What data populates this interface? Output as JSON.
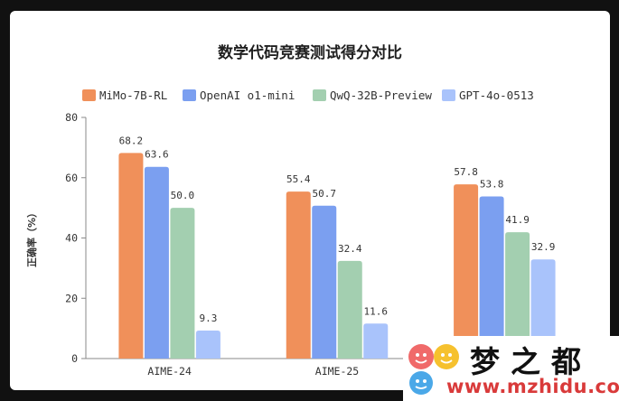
{
  "chart_data": {
    "type": "bar",
    "title": "数学代码竞赛测试得分对比",
    "ylabel": "正确率（%）",
    "xlabel": "",
    "ylim": [
      0,
      80
    ],
    "yticks": [
      0,
      20,
      40,
      60,
      80
    ],
    "categories": [
      "AIME-24",
      "AIME-25",
      ""
    ],
    "series": [
      {
        "name": "MiMo-7B-RL",
        "color": "#f0905a",
        "values": [
          68.2,
          55.4,
          57.8
        ],
        "labels": [
          "68.2",
          "55.4",
          "57.8"
        ]
      },
      {
        "name": "OpenAI o1-mini",
        "color": "#7b9ff0",
        "values": [
          63.6,
          50.7,
          53.8
        ],
        "labels": [
          "63.6",
          "50.7",
          "53.8"
        ]
      },
      {
        "name": "QwQ-32B-Preview",
        "color": "#a3cfb0",
        "values": [
          50.0,
          32.4,
          41.9
        ],
        "labels": [
          "50.0",
          "32.4",
          "41.9"
        ]
      },
      {
        "name": "GPT-4o-0513",
        "color": "#a9c3fb",
        "values": [
          9.3,
          11.6,
          32.9
        ],
        "labels": [
          "9.3",
          "11.6",
          "32.9"
        ]
      }
    ],
    "grid": false,
    "legend_position": "top"
  },
  "watermark": {
    "title": "梦之都",
    "url": "www.mzhidu.com"
  }
}
